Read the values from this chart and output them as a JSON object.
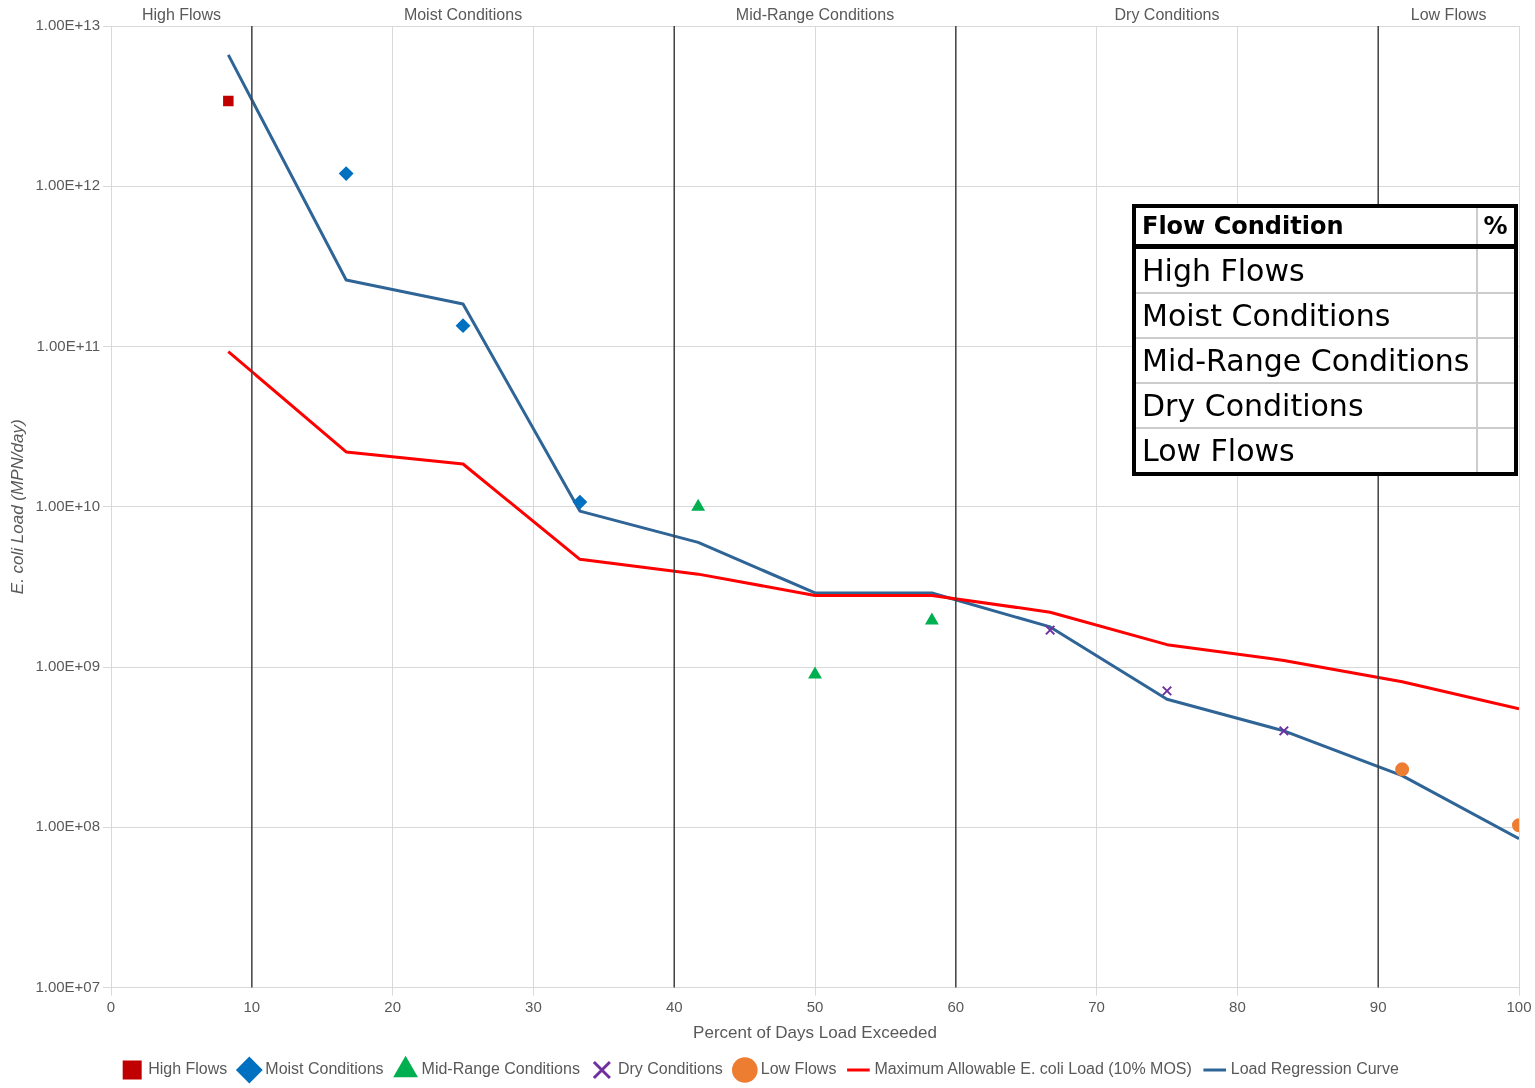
{
  "chart_data": {
    "type": "scatter",
    "xlabel": "Percent of Days Load Exceeded",
    "ylabel": "E. coli Load (MPN/day)",
    "log": "y",
    "grid": true,
    "legend": "bottom",
    "xlim": [
      0,
      100
    ],
    "xticks": [
      0,
      10,
      20,
      30,
      40,
      50,
      60,
      70,
      80,
      90,
      100
    ],
    "ylim": [
      10000000,
      10000000000000
    ],
    "yticks": [
      {
        "value": 10000000,
        "label": "1.00E+07"
      },
      {
        "value": 100000000,
        "label": "1.00E+08"
      },
      {
        "value": 1000000000,
        "label": "1.00E+09"
      },
      {
        "value": 10000000000,
        "label": "1.00E+10"
      },
      {
        "value": 100000000000,
        "label": "1.00E+11"
      },
      {
        "value": 1000000000000,
        "label": "1.00E+12"
      },
      {
        "value": 10000000000000,
        "label": "1.00E+13"
      }
    ],
    "ref_lines": [
      {
        "axis": "x",
        "value": 10,
        "color": "#404040"
      },
      {
        "axis": "x",
        "value": 40,
        "color": "#404040"
      },
      {
        "axis": "x",
        "value": 60,
        "color": "#404040"
      },
      {
        "axis": "x",
        "value": 90,
        "color": "#404040"
      }
    ],
    "annotations": [
      "High Flows",
      "Moist Conditions",
      "Mid-Range Conditions",
      "Dry Conditions",
      "Low Flows",
      "Flow Condition",
      "%",
      "High Flows",
      "Moist Conditions",
      "Mid-Range Conditions",
      "Dry Conditions",
      "Low Flows"
    ],
    "series": [
      {
        "name": "High Flows",
        "marker": "square",
        "color": "#c00000",
        "x": [
          8.33
        ],
        "values": [
          3400000000000
        ]
      },
      {
        "name": "Moist Conditions",
        "marker": "diamond",
        "color": "#0070c0",
        "x": [
          16.7,
          25,
          33.3
        ],
        "values": [
          1200000000000,
          135000000000,
          10700000000
        ]
      },
      {
        "name": "Mid-Range Conditions",
        "marker": "triangle",
        "color": "#00b050",
        "x": [
          41.7,
          50,
          58.3
        ],
        "values": [
          10000000000,
          900000000,
          1950000000
        ]
      },
      {
        "name": "Dry Conditions",
        "marker": "cross",
        "color": "#7030a0",
        "x": [
          66.7,
          75,
          83.3
        ],
        "values": [
          1700000000,
          710000000,
          400000000
        ]
      },
      {
        "name": "Low Flows",
        "marker": "circle",
        "color": "#ed7d31",
        "x": [
          91.7,
          100
        ],
        "values": [
          230000000,
          103000000
        ]
      },
      {
        "name": "Maximum Allowable E. coli Load (10% MOS)",
        "type": "line",
        "marker": "none",
        "line_style": "solid",
        "color": "#ff0000",
        "x": [
          8.33,
          16.7,
          25,
          33.3,
          41.7,
          50,
          58.3,
          66.7,
          75,
          83.3,
          91.7,
          100
        ],
        "values": [
          93000000000,
          22000000000,
          18500000000,
          4700000000,
          3800000000,
          2800000000,
          2800000000,
          2200000000,
          1380000000,
          1100000000,
          810000000,
          550000000
        ]
      },
      {
        "name": "Load Regression Curve",
        "type": "line",
        "marker": "none",
        "line_style": "solid",
        "color": "#2e6496",
        "x": [
          8.33,
          16.7,
          25,
          33.3,
          41.7,
          50,
          58.3,
          66.7,
          75,
          83.3,
          91.7,
          100
        ],
        "values": [
          6600000000000,
          260000000000,
          184000000000,
          9400000000,
          6000000000,
          2900000000,
          2900000000,
          1780000000,
          630000000,
          400000000,
          210000000,
          85000000
        ]
      }
    ]
  }
}
